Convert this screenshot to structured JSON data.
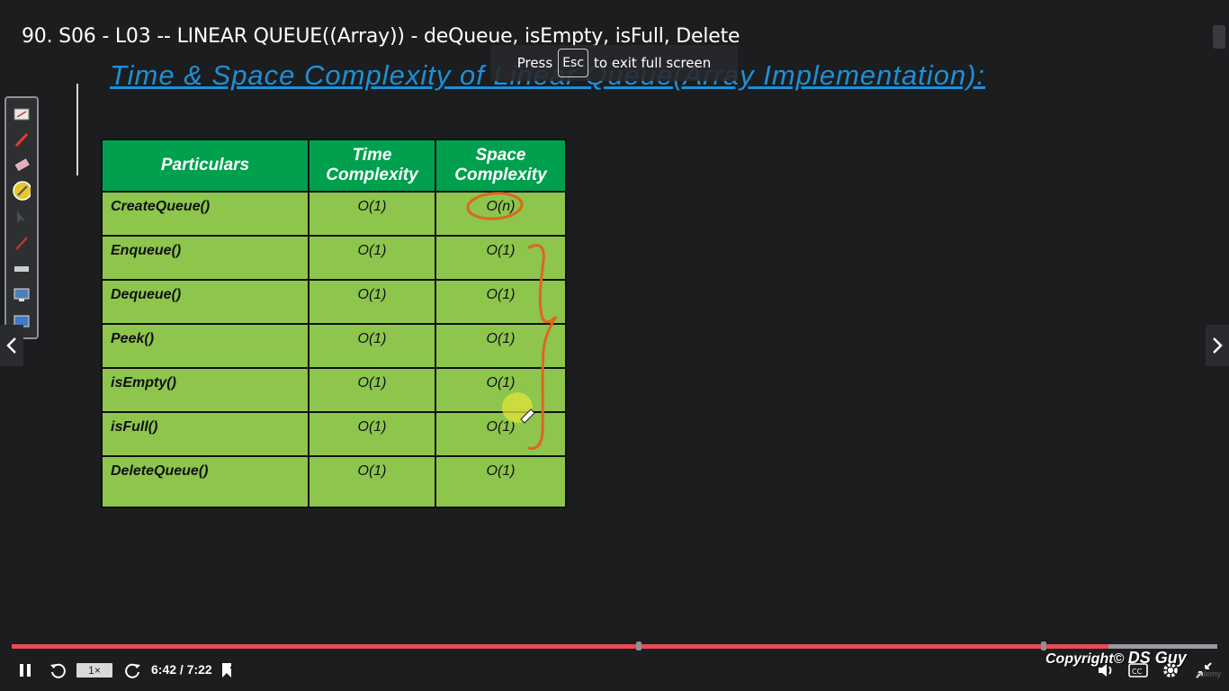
{
  "video": {
    "title": "90. S06 - L03 -- LINEAR QUEUE((Array)) - deQueue, isEmpty, isFull, Delete",
    "fullscreen_toast": {
      "press": "Press",
      "key": "Esc",
      "suffix": "to exit full screen"
    }
  },
  "slide": {
    "heading": "Time & Space Complexity of Linear Queue(Array Implementation):",
    "table": {
      "headers": [
        "Particulars",
        "Time\nComplexity",
        "Space\nComplexity"
      ],
      "header_lines": {
        "col1": "Particulars",
        "col2_line1": "Time",
        "col2_line2": "Complexity",
        "col3_line1": "Space",
        "col3_line2": "Complexity"
      },
      "rows": [
        {
          "particular": "CreateQueue()",
          "time": "O(1)",
          "space": "O(n)"
        },
        {
          "particular": "Enqueue()",
          "time": "O(1)",
          "space": "O(1)"
        },
        {
          "particular": "Dequeue()",
          "time": "O(1)",
          "space": "O(1)"
        },
        {
          "particular": "Peek()",
          "time": "O(1)",
          "space": "O(1)"
        },
        {
          "particular": "isEmpty()",
          "time": "O(1)",
          "space": "O(1)"
        },
        {
          "particular": "isFull()",
          "time": "O(1)",
          "space": "O(1)"
        },
        {
          "particular": "DeleteQueue()",
          "time": "O(1)",
          "space": "O(1)"
        }
      ],
      "colors": {
        "header": "#00a04f",
        "cell": "#8dc54d",
        "border": "#111111"
      }
    },
    "annotation_color": "#e0651e"
  },
  "toolbox": {
    "tools": [
      "whiteboard-icon",
      "pen-icon",
      "eraser-icon",
      "highlighter-icon",
      "pointer-icon",
      "brush-icon",
      "ruler-icon",
      "screen-icon",
      "capture-icon"
    ]
  },
  "player": {
    "speed": "1×",
    "time": "6:42 / 7:22",
    "progress": 0.91,
    "chapter_markers": [
      0.52,
      0.856
    ],
    "copyright_prefix": "Copyright©",
    "copyright_brand": "DS Guy",
    "accent_color": "#e84a57",
    "udemy": "udemy"
  }
}
